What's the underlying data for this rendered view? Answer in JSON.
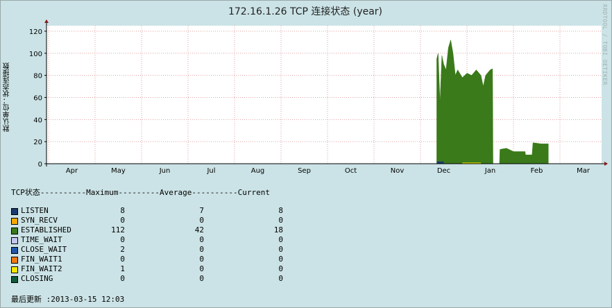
{
  "chart_data": {
    "type": "area",
    "title": "172.16.1.26 TCP 连接状态 (year)",
    "ylabel": "默认单位：状态连接数",
    "watermark": "RRDTOOL / TOBI OETIKER",
    "ylim": [
      0,
      125
    ],
    "yticks": [
      0,
      20,
      40,
      60,
      80,
      100,
      120
    ],
    "xticks": [
      "Apr",
      "May",
      "Jun",
      "Jul",
      "Aug",
      "Sep",
      "Oct",
      "Nov",
      "Dec",
      "Jan",
      "Feb",
      "Mar"
    ],
    "grid": true,
    "series": [
      {
        "name": "LISTEN",
        "color": "#1a3a6e",
        "max": "8",
        "avg": "7",
        "cur": "8"
      },
      {
        "name": "SYN_RECV",
        "color": "#f5a800",
        "max": "0",
        "avg": "0",
        "cur": "0"
      },
      {
        "name": "ESTABLISHED",
        "color": "#3a7a1a",
        "max": "112",
        "avg": "42",
        "cur": "18"
      },
      {
        "name": "TIME_WAIT",
        "color": "#c2c6ee",
        "max": "0",
        "avg": "0",
        "cur": "0"
      },
      {
        "name": "CLOSE_WAIT",
        "color": "#2255aa",
        "max": "2",
        "avg": "0",
        "cur": "0"
      },
      {
        "name": "FIN_WAIT1",
        "color": "#f07a10",
        "max": "0",
        "avg": "0",
        "cur": "0"
      },
      {
        "name": "FIN_WAIT2",
        "color": "#f5e800",
        "max": "1",
        "avg": "0",
        "cur": "0"
      },
      {
        "name": "CLOSING",
        "color": "#0f5a3a",
        "max": "0",
        "avg": "0",
        "cur": "0"
      }
    ],
    "established_profile": [
      {
        "month": 8.35,
        "value": 95
      },
      {
        "month": 8.38,
        "value": 100
      },
      {
        "month": 8.42,
        "value": 55
      },
      {
        "month": 8.46,
        "value": 98
      },
      {
        "month": 8.5,
        "value": 90
      },
      {
        "month": 8.55,
        "value": 85
      },
      {
        "month": 8.6,
        "value": 105
      },
      {
        "month": 8.65,
        "value": 112
      },
      {
        "month": 8.7,
        "value": 100
      },
      {
        "month": 8.75,
        "value": 80
      },
      {
        "month": 8.8,
        "value": 85
      },
      {
        "month": 8.9,
        "value": 78
      },
      {
        "month": 9.0,
        "value": 82
      },
      {
        "month": 9.1,
        "value": 80
      },
      {
        "month": 9.2,
        "value": 85
      },
      {
        "month": 9.3,
        "value": 80
      },
      {
        "month": 9.35,
        "value": 70
      },
      {
        "month": 9.4,
        "value": 80
      },
      {
        "month": 9.5,
        "value": 85
      },
      {
        "month": 9.55,
        "value": 86
      },
      {
        "month": 9.56,
        "value": 0
      },
      {
        "month": 9.7,
        "value": 0
      },
      {
        "month": 9.71,
        "value": 13
      },
      {
        "month": 9.85,
        "value": 14
      },
      {
        "month": 10.0,
        "value": 11
      },
      {
        "month": 10.25,
        "value": 11
      },
      {
        "month": 10.26,
        "value": 8
      },
      {
        "month": 10.4,
        "value": 8
      },
      {
        "month": 10.42,
        "value": 19
      },
      {
        "month": 10.6,
        "value": 18
      },
      {
        "month": 10.75,
        "value": 18
      }
    ]
  },
  "legend": {
    "header": "TCP状态----------Maximum---------Average----------Current"
  },
  "footer": {
    "last_update": "最后更新 :2013-03-15 12:03"
  }
}
